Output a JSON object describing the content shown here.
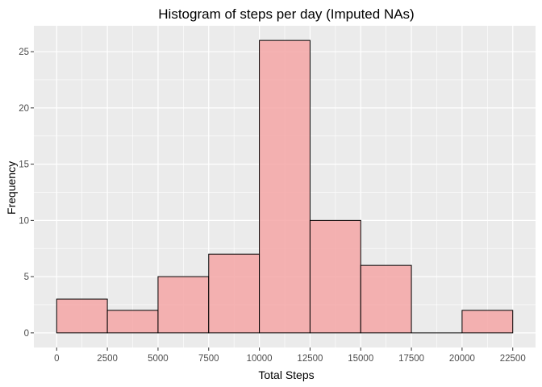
{
  "chart_data": {
    "type": "bar",
    "title": "Histogram of steps per day (Imputed NAs)",
    "xlabel": "Total Steps",
    "ylabel": "Frequency",
    "bin_width": 2500,
    "bins": [
      {
        "start": 0,
        "end": 2500,
        "count": 3
      },
      {
        "start": 2500,
        "end": 5000,
        "count": 2
      },
      {
        "start": 5000,
        "end": 7500,
        "count": 5
      },
      {
        "start": 7500,
        "end": 10000,
        "count": 7
      },
      {
        "start": 10000,
        "end": 12500,
        "count": 26
      },
      {
        "start": 12500,
        "end": 15000,
        "count": 10
      },
      {
        "start": 15000,
        "end": 17500,
        "count": 6
      },
      {
        "start": 17500,
        "end": 20000,
        "count": 0
      },
      {
        "start": 20000,
        "end": 22500,
        "count": 2
      }
    ],
    "xlim": [
      -1125,
      23625
    ],
    "ylim": [
      -1.3,
      27.3
    ],
    "x_ticks": [
      "0",
      "2500",
      "5000",
      "7500",
      "10000",
      "12500",
      "15000",
      "17500",
      "20000",
      "22500"
    ],
    "y_ticks": [
      "0",
      "5",
      "10",
      "15",
      "20",
      "25"
    ],
    "grid": true,
    "legend": "none",
    "colors": {
      "bar_fill": "#f4a6a6",
      "bar_stroke": "#000000",
      "panel_bg": "#ebebeb",
      "grid_major": "#ffffff"
    }
  }
}
